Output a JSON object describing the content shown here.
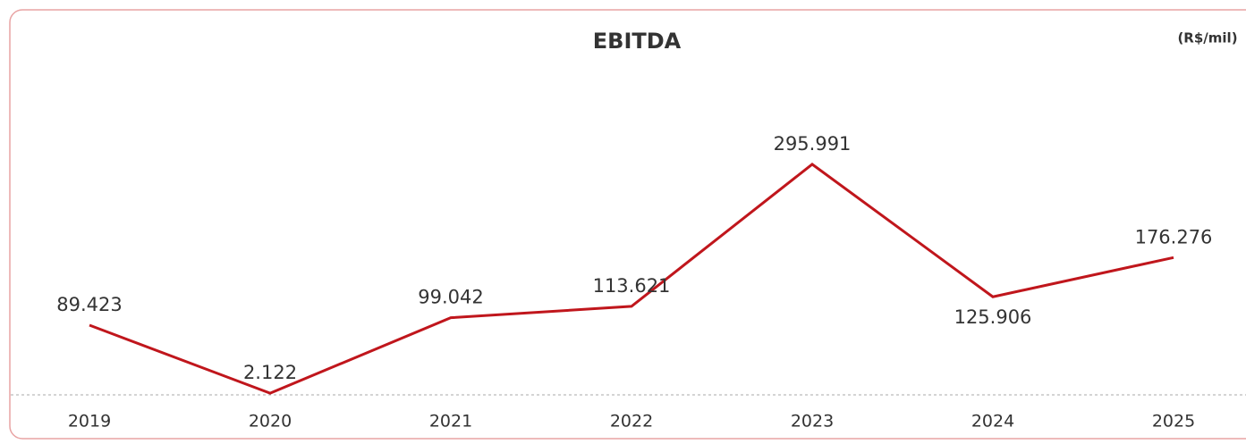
{
  "chart_data": {
    "type": "line",
    "title": "EBITDA",
    "unit_label": "(R$/mil)",
    "categories": [
      "2019",
      "2020",
      "2021",
      "2022",
      "2023",
      "2024",
      "2025"
    ],
    "series": [
      {
        "name": "EBITDA",
        "color": "#c0161c",
        "values": [
          89423,
          2122,
          99042,
          113621,
          295991,
          125906,
          176276
        ],
        "value_labels": [
          "89.423",
          "2.122",
          "99.042",
          "113.621",
          "295.991",
          "125.906",
          "176.276"
        ]
      }
    ]
  }
}
